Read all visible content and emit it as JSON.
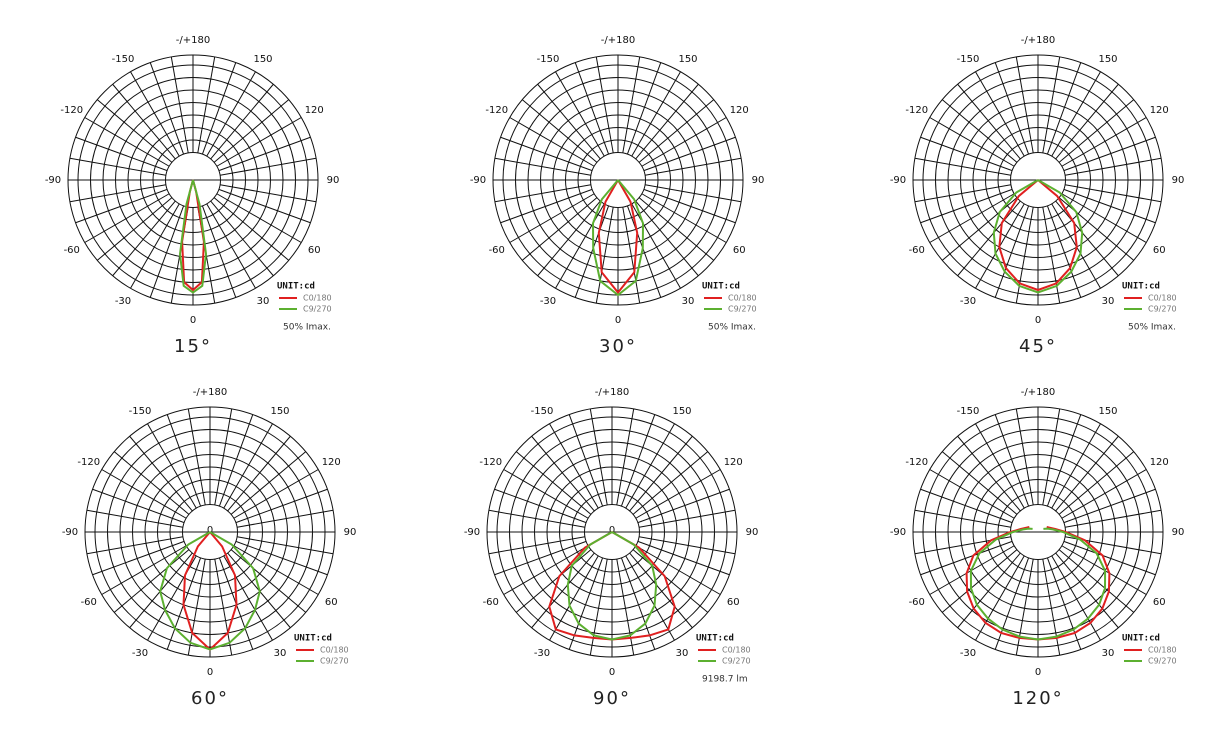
{
  "chart_data": [
    {
      "type": "polar",
      "caption": "15°",
      "unit": "UNIT:cd",
      "note": "50% Imax.",
      "rlim": [
        0,
        100
      ],
      "rticks": [
        22,
        32,
        42,
        52,
        62,
        72,
        82,
        92
      ],
      "thetaticks": [
        {
          "value": 180,
          "label": "-/+180"
        },
        150,
        120,
        90,
        60,
        30,
        0,
        -30,
        -60,
        -90,
        -120,
        -150
      ],
      "series": [
        {
          "name": "C0/180",
          "color": "#e02020",
          "theta": [
            -20,
            -15,
            -10,
            -5,
            0,
            5,
            10,
            15,
            20
          ],
          "values": [
            0,
            10,
            50,
            82,
            88,
            82,
            50,
            10,
            0
          ]
        },
        {
          "name": "C9/270",
          "color": "#5cb030",
          "theta": [
            -20,
            -15,
            -10,
            -5,
            0,
            5,
            10,
            15,
            20
          ],
          "values": [
            0,
            20,
            60,
            85,
            90,
            85,
            60,
            20,
            0
          ]
        }
      ]
    },
    {
      "type": "polar",
      "caption": "30°",
      "unit": "UNIT:cd",
      "note": "50% Imax.",
      "rlim": [
        0,
        100
      ],
      "rticks": [
        22,
        32,
        42,
        52,
        62,
        72,
        82,
        92
      ],
      "thetaticks": [
        {
          "value": 180,
          "label": "-/+180"
        },
        150,
        120,
        90,
        60,
        30,
        0,
        -30,
        -60,
        -90,
        -120,
        -150
      ],
      "series": [
        {
          "name": "C0/180",
          "color": "#e02020",
          "theta": [
            -40,
            -30,
            -20,
            -10,
            0,
            10,
            20,
            30,
            40
          ],
          "values": [
            0,
            20,
            45,
            75,
            90,
            75,
            45,
            20,
            0
          ]
        },
        {
          "name": "C9/270",
          "color": "#5cb030",
          "theta": [
            -50,
            -40,
            -30,
            -20,
            -10,
            0,
            10,
            20,
            30,
            40,
            50
          ],
          "values": [
            0,
            20,
            40,
            58,
            82,
            92,
            82,
            58,
            40,
            20,
            0
          ]
        }
      ]
    },
    {
      "type": "polar",
      "caption": "45°",
      "unit": "UNIT:cd",
      "note": "50% Imax.",
      "rlim": [
        0,
        100
      ],
      "rticks": [
        22,
        32,
        42,
        52,
        62,
        72,
        82,
        92
      ],
      "thetaticks": [
        {
          "value": 180,
          "label": "-/+180"
        },
        150,
        120,
        90,
        60,
        30,
        0,
        -30,
        -60,
        -90,
        -120,
        -150
      ],
      "series": [
        {
          "name": "C0/180",
          "color": "#e02020",
          "theta": [
            -60,
            -50,
            -40,
            -30,
            -20,
            -10,
            0,
            10,
            20,
            30,
            40,
            50,
            60
          ],
          "values": [
            0,
            20,
            45,
            62,
            75,
            84,
            88,
            84,
            75,
            62,
            45,
            20,
            0
          ]
        },
        {
          "name": "C9/270",
          "color": "#5cb030",
          "theta": [
            -70,
            -60,
            -50,
            -40,
            -30,
            -20,
            -10,
            0,
            10,
            20,
            30,
            40,
            50,
            60,
            70
          ],
          "values": [
            0,
            20,
            40,
            55,
            68,
            78,
            86,
            90,
            86,
            78,
            68,
            55,
            40,
            20,
            0
          ]
        }
      ]
    },
    {
      "type": "polar",
      "caption": "60°",
      "unit": "UNIT:cd",
      "center_label": "0",
      "rlim": [
        0,
        100
      ],
      "rticks": [
        22,
        32,
        42,
        52,
        62,
        72,
        82,
        92
      ],
      "thetaticks": [
        {
          "value": 180,
          "label": "-/+180"
        },
        150,
        120,
        90,
        60,
        30,
        0,
        -30,
        -60,
        -90,
        -120,
        -150
      ],
      "series": [
        {
          "name": "C0/180",
          "color": "#e02020",
          "theta": [
            -50,
            -40,
            -30,
            -20,
            -10,
            0,
            10,
            20,
            30,
            40,
            50
          ],
          "values": [
            0,
            15,
            40,
            62,
            82,
            94,
            82,
            62,
            40,
            15,
            0
          ]
        },
        {
          "name": "C9/270",
          "color": "#5cb030",
          "theta": [
            -70,
            -60,
            -50,
            -40,
            -30,
            -20,
            -10,
            0,
            10,
            20,
            30,
            40,
            50,
            60,
            70
          ],
          "values": [
            0,
            20,
            45,
            62,
            72,
            82,
            90,
            94,
            90,
            82,
            72,
            62,
            45,
            20,
            0
          ]
        }
      ]
    },
    {
      "type": "polar",
      "caption": "90°",
      "unit": "UNIT:cd",
      "center_label": "0",
      "note": "9198.7 lm",
      "rlim": [
        0,
        100
      ],
      "rticks": [
        22,
        32,
        42,
        52,
        62,
        72,
        82,
        92
      ],
      "thetaticks": [
        {
          "value": 180,
          "label": "-/+180"
        },
        150,
        120,
        90,
        60,
        30,
        0,
        -30,
        -60,
        -90,
        -120,
        -150
      ],
      "series": [
        {
          "name": "C0/180",
          "color": "#e02020",
          "theta": [
            -70,
            -60,
            -50,
            -40,
            -30,
            -20,
            -10,
            0,
            10,
            20,
            30,
            40,
            50,
            60,
            70
          ],
          "values": [
            0,
            25,
            55,
            78,
            90,
            88,
            86,
            86,
            86,
            88,
            90,
            78,
            55,
            25,
            0
          ]
        },
        {
          "name": "C9/270",
          "color": "#5cb030",
          "theta": [
            -70,
            -60,
            -50,
            -40,
            -30,
            -20,
            -10,
            0,
            10,
            20,
            30,
            40,
            50,
            60,
            70
          ],
          "values": [
            0,
            20,
            42,
            55,
            68,
            78,
            84,
            86,
            84,
            78,
            68,
            55,
            42,
            20,
            0
          ]
        }
      ]
    },
    {
      "type": "polar",
      "caption": "120°",
      "unit": "UNIT:cd",
      "rlim": [
        0,
        100
      ],
      "rticks": [
        22,
        32,
        42,
        52,
        62,
        72,
        82,
        92
      ],
      "thetaticks": [
        {
          "value": 180,
          "label": "-/+180"
        },
        150,
        120,
        90,
        60,
        30,
        0,
        -30,
        -60,
        -90,
        -120,
        -150
      ],
      "series": [
        {
          "name": "C0/180",
          "color": "#e02020",
          "theta": [
            -120,
            -110,
            -100,
            -90,
            -80,
            -70,
            -60,
            -50,
            -40,
            -30,
            -20,
            -10,
            0,
            10,
            20,
            30,
            40,
            50,
            60,
            70,
            80,
            90,
            100,
            110,
            120
          ],
          "values": [
            8,
            10,
            14,
            22,
            38,
            55,
            66,
            74,
            80,
            84,
            86,
            86,
            86,
            86,
            86,
            84,
            80,
            74,
            66,
            55,
            38,
            22,
            14,
            10,
            8
          ]
        },
        {
          "name": "C9/270",
          "color": "#5cb030",
          "theta": [
            -120,
            -110,
            -100,
            -90,
            -80,
            -70,
            -60,
            -50,
            -40,
            -30,
            -20,
            -10,
            0,
            10,
            20,
            30,
            40,
            50,
            60,
            70,
            80,
            90,
            100,
            110,
            120
          ],
          "values": [
            5,
            8,
            12,
            20,
            34,
            50,
            62,
            70,
            76,
            80,
            83,
            85,
            86,
            85,
            83,
            80,
            76,
            70,
            62,
            50,
            34,
            20,
            12,
            8,
            5
          ]
        }
      ]
    }
  ]
}
